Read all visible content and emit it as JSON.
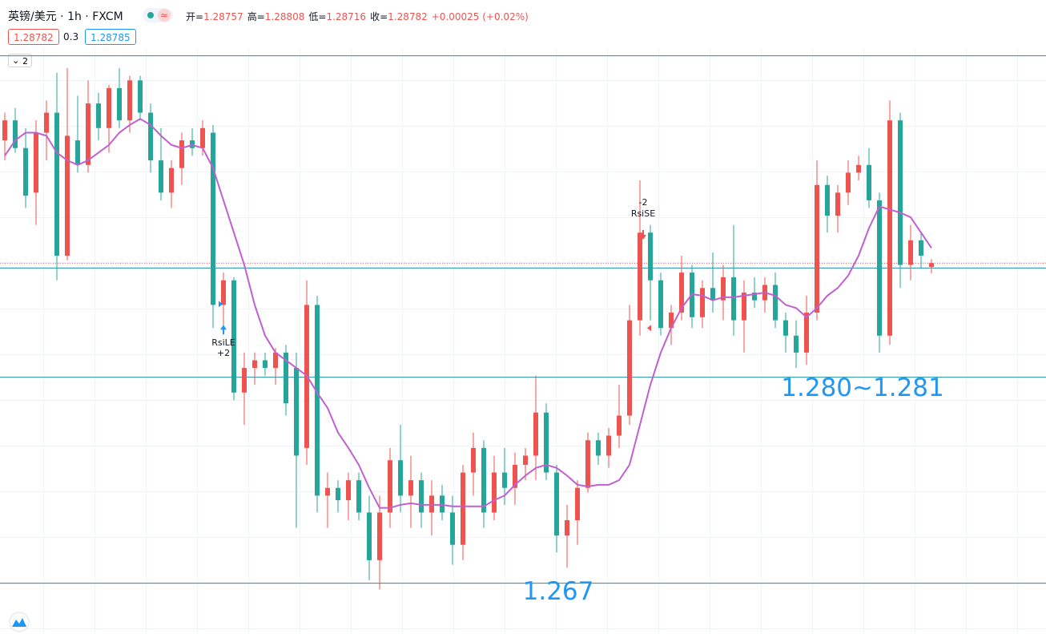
{
  "header": {
    "symbol": "英镑/美元 · 1h · FXCM",
    "ohlc": [
      {
        "label": "开=",
        "value": 1.28757
      },
      {
        "label": "高=",
        "value": 1.28808
      },
      {
        "label": "低=",
        "value": 1.28716
      },
      {
        "label": "收=",
        "value": 1.28782
      }
    ],
    "change": "+0.00025 (+0.02%)",
    "bid": "1.28782",
    "spread": "0.3",
    "ask": "1.28785",
    "pane_count": "2"
  },
  "chart_data": {
    "type": "candlestick",
    "open": [
      1.2958,
      1.2971,
      1.2953,
      1.2924,
      1.2963,
      1.2976,
      1.2883,
      1.2958,
      1.2942,
      1.2982,
      1.2966,
      1.2992,
      1.2971,
      1.2997,
      1.2976,
      1.2945,
      1.2924,
      1.294,
      1.2958,
      1.2953,
      1.2963,
      1.2851,
      1.2867,
      1.2794,
      1.281,
      1.2815,
      1.281,
      1.282,
      1.281,
      1.2758,
      1.2851,
      1.2727,
      1.2732,
      1.2724,
      1.2737,
      1.2716,
      1.2685,
      1.2716,
      1.275,
      1.2727,
      1.2737,
      1.2716,
      1.2727,
      1.2716,
      1.2695,
      1.2742,
      1.2758,
      1.2716,
      1.2742,
      1.2732,
      1.2747,
      1.2753,
      1.2781,
      1.2742,
      1.2701,
      1.2711,
      1.2732,
      1.2763,
      1.2753,
      1.2766,
      1.2779,
      1.2841,
      1.2898,
      1.2867,
      1.2836,
      1.2846,
      1.2872,
      1.2843,
      1.2862,
      1.2854,
      1.2869,
      1.2841,
      1.2859,
      1.2854,
      1.2864,
      1.2841,
      1.2831,
      1.282,
      1.2846,
      1.2929,
      1.2909,
      1.2924,
      1.2937,
      1.2942,
      1.2919,
      1.2831,
      1.2971,
      1.2877,
      1.2893,
      1.28757
    ],
    "high": [
      1.2976,
      1.2979,
      1.2966,
      1.2971,
      1.2984,
      1.3002,
      1.3005,
      1.2987,
      1.2997,
      1.2989,
      1.2994,
      1.3005,
      1.3,
      1.3,
      1.2982,
      1.2966,
      1.2945,
      1.2963,
      1.2966,
      1.2971,
      1.2968,
      1.2872,
      1.2869,
      1.282,
      1.282,
      1.282,
      1.2823,
      1.2825,
      1.282,
      1.2867,
      1.2857,
      1.2742,
      1.2737,
      1.2742,
      1.2742,
      1.2727,
      1.2727,
      1.2758,
      1.2773,
      1.2753,
      1.2742,
      1.2737,
      1.2734,
      1.2727,
      1.2747,
      1.2768,
      1.2763,
      1.2753,
      1.2758,
      1.2755,
      1.2758,
      1.2805,
      1.2787,
      1.2747,
      1.2721,
      1.2737,
      1.2768,
      1.2768,
      1.2771,
      1.2799,
      1.2851,
      1.2932,
      1.2903,
      1.2872,
      1.2851,
      1.2883,
      1.2877,
      1.2867,
      1.2885,
      1.2877,
      1.2903,
      1.2867,
      1.2869,
      1.2869,
      1.2872,
      1.2846,
      1.2841,
      1.2857,
      1.2945,
      1.2935,
      1.2929,
      1.2945,
      1.2948,
      1.2953,
      1.2924,
      1.2984,
      1.2976,
      1.2903,
      1.2898,
      1.28808
    ],
    "low": [
      1.2945,
      1.295,
      1.2914,
      1.2903,
      1.2945,
      1.2867,
      1.288,
      1.2937,
      1.2937,
      1.2958,
      1.295,
      1.2966,
      1.2963,
      1.2971,
      1.2937,
      1.2919,
      1.2914,
      1.2929,
      1.2948,
      1.2948,
      1.2836,
      1.2836,
      1.2789,
      1.2773,
      1.2799,
      1.2805,
      1.2799,
      1.2779,
      1.2706,
      1.2747,
      1.2716,
      1.2706,
      1.2716,
      1.2711,
      1.2711,
      1.2672,
      1.2666,
      1.2706,
      1.2716,
      1.2706,
      1.2706,
      1.2701,
      1.2711,
      1.2682,
      1.2685,
      1.2727,
      1.2706,
      1.2711,
      1.2721,
      1.2721,
      1.2737,
      1.2737,
      1.2737,
      1.269,
      1.268,
      1.2695,
      1.2729,
      1.2747,
      1.2745,
      1.2758,
      1.2773,
      1.2831,
      1.2841,
      1.2831,
      1.2825,
      1.2841,
      1.2836,
      1.2836,
      1.2846,
      1.2841,
      1.2831,
      1.282,
      1.2849,
      1.2846,
      1.2836,
      1.282,
      1.281,
      1.2812,
      1.2841,
      1.2898,
      1.2898,
      1.2916,
      1.2932,
      1.2914,
      1.282,
      1.2825,
      1.2862,
      1.2867,
      1.2875,
      1.28716
    ],
    "close": [
      1.2971,
      1.2953,
      1.2922,
      1.2963,
      1.2976,
      1.2883,
      1.2961,
      1.2942,
      1.2982,
      1.2966,
      1.2992,
      1.2971,
      1.2997,
      1.2976,
      1.2945,
      1.2924,
      1.294,
      1.2958,
      1.2953,
      1.2966,
      1.2851,
      1.2867,
      1.2794,
      1.281,
      1.2815,
      1.281,
      1.282,
      1.2787,
      1.2753,
      1.2851,
      1.2727,
      1.2732,
      1.2724,
      1.2737,
      1.2716,
      1.2685,
      1.2716,
      1.275,
      1.2727,
      1.2737,
      1.2716,
      1.2727,
      1.2716,
      1.2695,
      1.2742,
      1.2758,
      1.2716,
      1.2742,
      1.2732,
      1.2747,
      1.2753,
      1.2781,
      1.2742,
      1.2701,
      1.2711,
      1.2732,
      1.2763,
      1.2753,
      1.2766,
      1.2779,
      1.2841,
      1.2898,
      1.2867,
      1.2836,
      1.2846,
      1.2872,
      1.2843,
      1.2862,
      1.2854,
      1.2869,
      1.2841,
      1.2859,
      1.2854,
      1.2864,
      1.2841,
      1.2831,
      1.282,
      1.2846,
      1.2929,
      1.2909,
      1.2924,
      1.2937,
      1.2942,
      1.2919,
      1.2831,
      1.2971,
      1.2877,
      1.2893,
      1.2883,
      1.28782
    ],
    "up_color": "#ef5350",
    "down_color": "#26a69a",
    "ma": {
      "color": "#c060d0",
      "values": [
        1.2948,
        1.2958,
        1.2963,
        1.2963,
        1.2961,
        1.295,
        1.2945,
        1.2942,
        1.2945,
        1.295,
        1.2955,
        1.2963,
        1.2968,
        1.2972,
        1.2968,
        1.2961,
        1.2955,
        1.2953,
        1.2955,
        1.2953,
        1.294,
        1.2919,
        1.2898,
        1.2877,
        1.2851,
        1.2831,
        1.282,
        1.2815,
        1.281,
        1.2805,
        1.2794,
        1.2784,
        1.2768,
        1.2758,
        1.2747,
        1.2732,
        1.2719,
        1.2719,
        1.2721,
        1.2722,
        1.2721,
        1.2721,
        1.2721,
        1.272,
        1.272,
        1.272,
        1.272,
        1.2724,
        1.2727,
        1.2734,
        1.274,
        1.2745,
        1.2747,
        1.2745,
        1.274,
        1.2734,
        1.2733,
        1.2734,
        1.2734,
        1.2737,
        1.2747,
        1.2773,
        1.2799,
        1.282,
        1.2836,
        1.2849,
        1.2858,
        1.2857,
        1.2854,
        1.2856,
        1.2856,
        1.2857,
        1.2858,
        1.2859,
        1.2857,
        1.2851,
        1.2849,
        1.2843,
        1.2849,
        1.2857,
        1.2862,
        1.287,
        1.2883,
        1.2901,
        1.2915,
        1.2913,
        1.2911,
        1.2908,
        1.2898,
        1.2888
      ]
    },
    "ylim": [
      1.2637,
      1.3018
    ],
    "hlines": [
      1.3013,
      1.2875,
      1.2804,
      1.267
    ],
    "hline_color": "#1f8fa6",
    "annotations": [
      "1.280~1.281",
      "1.267"
    ],
    "signals": [
      {
        "name": "RsiLE",
        "qty": "+2",
        "side": "long"
      },
      {
        "name": "RsiSE",
        "qty": "-2",
        "side": "short"
      }
    ]
  }
}
